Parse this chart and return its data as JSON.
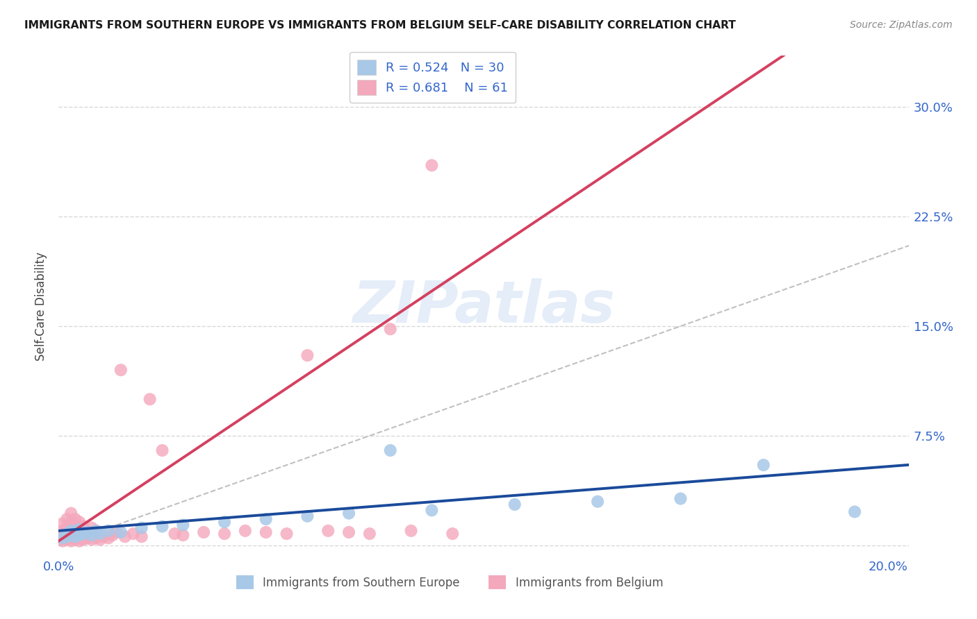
{
  "title": "IMMIGRANTS FROM SOUTHERN EUROPE VS IMMIGRANTS FROM BELGIUM SELF-CARE DISABILITY CORRELATION CHART",
  "source": "Source: ZipAtlas.com",
  "ylabel": "Self-Care Disability",
  "xlim": [
    0.0,
    0.205
  ],
  "ylim": [
    -0.008,
    0.335
  ],
  "xticks": [
    0.0,
    0.05,
    0.1,
    0.15,
    0.2
  ],
  "yticks": [
    0.0,
    0.075,
    0.15,
    0.225,
    0.3
  ],
  "series1_label": "Immigrants from Southern Europe",
  "series2_label": "Immigrants from Belgium",
  "series1_color": "#a8c8e8",
  "series2_color": "#f4a8bc",
  "series1_line_color": "#1a4a9a",
  "series2_line_color": "#d44060",
  "R1": 0.524,
  "N1": 30,
  "R2": 0.681,
  "N2": 61,
  "watermark": "ZIPatlas",
  "background_color": "#ffffff",
  "grid_color": "#d8d8d8",
  "series1_x": [
    0.001,
    0.002,
    0.002,
    0.003,
    0.003,
    0.004,
    0.004,
    0.005,
    0.005,
    0.006,
    0.007,
    0.008,
    0.009,
    0.01,
    0.012,
    0.015,
    0.02,
    0.025,
    0.03,
    0.04,
    0.05,
    0.06,
    0.07,
    0.08,
    0.09,
    0.11,
    0.13,
    0.15,
    0.17,
    0.192
  ],
  "series1_y": [
    0.005,
    0.006,
    0.008,
    0.007,
    0.01,
    0.006,
    0.009,
    0.007,
    0.011,
    0.008,
    0.009,
    0.007,
    0.01,
    0.008,
    0.01,
    0.009,
    0.012,
    0.013,
    0.014,
    0.016,
    0.018,
    0.02,
    0.022,
    0.065,
    0.024,
    0.028,
    0.03,
    0.032,
    0.055,
    0.023
  ],
  "series2_x": [
    0.001,
    0.001,
    0.001,
    0.001,
    0.001,
    0.002,
    0.002,
    0.002,
    0.002,
    0.002,
    0.003,
    0.003,
    0.003,
    0.003,
    0.003,
    0.003,
    0.004,
    0.004,
    0.004,
    0.004,
    0.005,
    0.005,
    0.005,
    0.005,
    0.006,
    0.006,
    0.006,
    0.007,
    0.007,
    0.008,
    0.008,
    0.008,
    0.009,
    0.009,
    0.01,
    0.01,
    0.011,
    0.012,
    0.013,
    0.014,
    0.015,
    0.016,
    0.018,
    0.02,
    0.022,
    0.025,
    0.028,
    0.03,
    0.035,
    0.04,
    0.045,
    0.05,
    0.055,
    0.06,
    0.065,
    0.07,
    0.075,
    0.08,
    0.085,
    0.09,
    0.095
  ],
  "series2_y": [
    0.003,
    0.005,
    0.007,
    0.01,
    0.015,
    0.004,
    0.006,
    0.008,
    0.012,
    0.018,
    0.003,
    0.005,
    0.008,
    0.011,
    0.015,
    0.022,
    0.004,
    0.007,
    0.012,
    0.018,
    0.003,
    0.006,
    0.01,
    0.016,
    0.004,
    0.008,
    0.013,
    0.005,
    0.009,
    0.004,
    0.007,
    0.012,
    0.005,
    0.01,
    0.004,
    0.008,
    0.006,
    0.005,
    0.007,
    0.009,
    0.12,
    0.006,
    0.008,
    0.006,
    0.1,
    0.065,
    0.008,
    0.007,
    0.009,
    0.008,
    0.01,
    0.009,
    0.008,
    0.13,
    0.01,
    0.009,
    0.008,
    0.148,
    0.01,
    0.26,
    0.008
  ]
}
